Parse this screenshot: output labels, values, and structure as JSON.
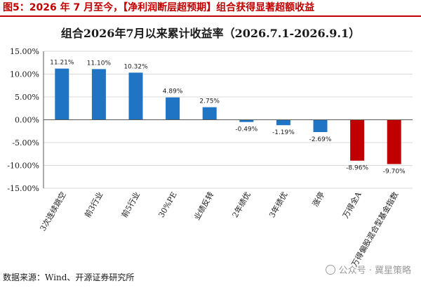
{
  "figure_title": "图5：2026 年 7 月至今，【净利润断层超预期】组合获得显著超额收益",
  "source": "数据来源：Wind、开源证券研究所",
  "watermark": "公众号 · 冀星策略",
  "colors": {
    "positive": "#1f74c3",
    "negative": "#c00000",
    "title_red": "#c00000",
    "axis": "#595959",
    "grid": "#d9d9d9"
  },
  "chart_data": {
    "type": "bar",
    "title": "组合2026年7月以来累计收益率（2026.7.1-2026.9.1）",
    "xlabel": "",
    "ylabel": "",
    "ylim": [
      -0.15,
      0.15
    ],
    "yticks": [
      "15.00%",
      "10.00%",
      "5.00%",
      "0.00%",
      "-5.00%",
      "-10.00%",
      "-15.00%"
    ],
    "ytick_values": [
      0.15,
      0.1,
      0.05,
      0.0,
      -0.05,
      -0.1,
      -0.15
    ],
    "grid": true,
    "categories": [
      "3次连续跳空",
      "前3行业",
      "前5行业",
      "30%PE",
      "业绩反转",
      "2年绩优",
      "3年绩优",
      "涨停",
      "万得全A",
      "万得偏股混合型基金指数"
    ],
    "values": [
      0.1121,
      0.111,
      0.1032,
      0.0489,
      0.0275,
      -0.0049,
      -0.0119,
      -0.0269,
      -0.0896,
      -0.097
    ],
    "labels": [
      "11.21%",
      "11.10%",
      "10.32%",
      "4.89%",
      "2.75%",
      "-0.49%",
      "-1.19%",
      "-2.69%",
      "-8.96%",
      "-9.70%"
    ],
    "highlighted": [
      false,
      false,
      false,
      false,
      false,
      false,
      false,
      false,
      true,
      true
    ]
  }
}
